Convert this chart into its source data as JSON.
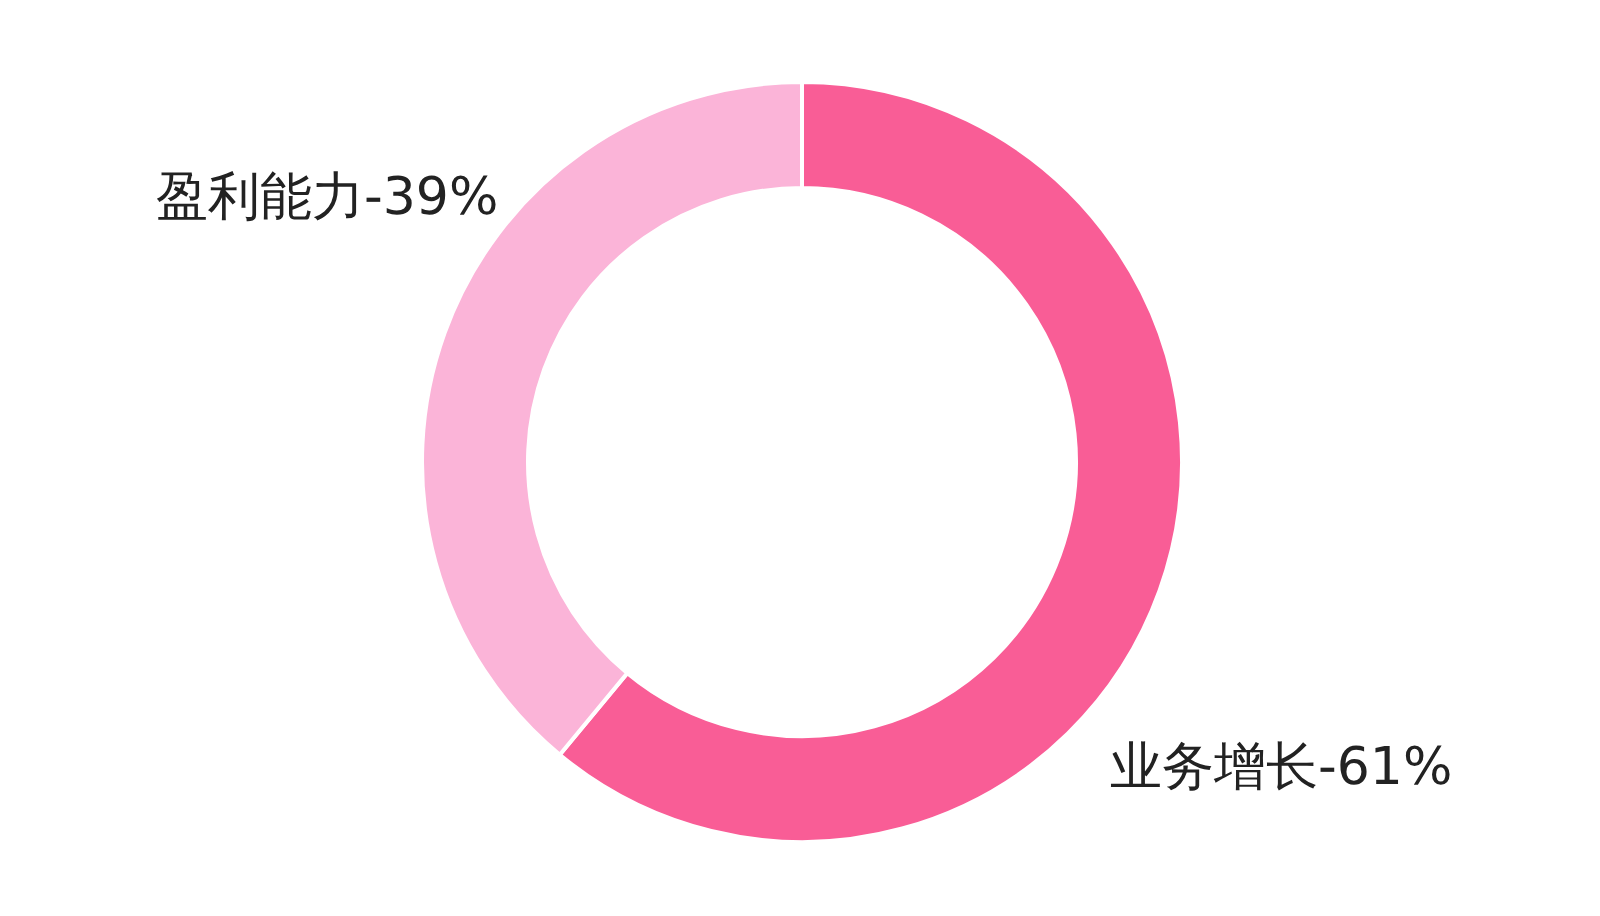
{
  "chart_data": {
    "type": "donut",
    "categories": [
      "业务增长-61%",
      "盈利能力-39%"
    ],
    "values": [
      61,
      39
    ],
    "colors": [
      "#f95d96",
      "#fbb4d8"
    ]
  }
}
